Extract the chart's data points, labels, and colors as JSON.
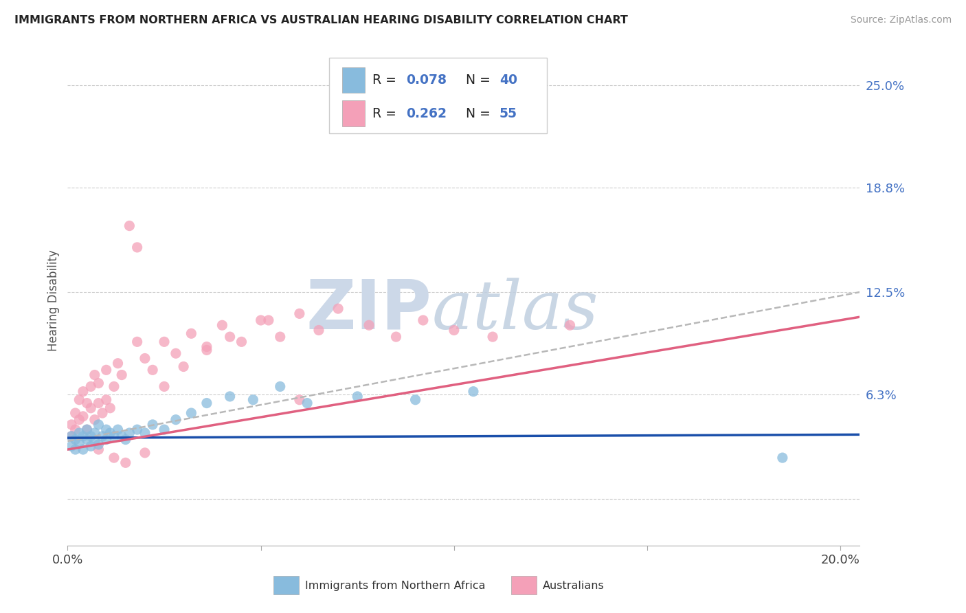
{
  "title": "IMMIGRANTS FROM NORTHERN AFRICA VS AUSTRALIAN HEARING DISABILITY CORRELATION CHART",
  "source": "Source: ZipAtlas.com",
  "ylabel": "Hearing Disability",
  "xlim": [
    0.0,
    0.205
  ],
  "ylim": [
    -0.028,
    0.268
  ],
  "ytick_vals": [
    0.0,
    0.063,
    0.125,
    0.188,
    0.25
  ],
  "ytick_labels": [
    "",
    "6.3%",
    "12.5%",
    "18.8%",
    "25.0%"
  ],
  "xtick_vals": [
    0.0,
    0.05,
    0.1,
    0.15,
    0.2
  ],
  "xtick_labels": [
    "0.0%",
    "",
    "",
    "",
    "20.0%"
  ],
  "legend_R1": "0.078",
  "legend_N1": "40",
  "legend_R2": "0.262",
  "legend_N2": "55",
  "legend_label1": "Immigrants from Northern Africa",
  "legend_label2": "Australians",
  "blue_color": "#88bbdd",
  "pink_color": "#f4a0b8",
  "trend_blue": "#1a4faa",
  "trend_pink": "#e06080",
  "trend_gray": "#b8b8b8",
  "accent_color": "#4472c4",
  "blue_x": [
    0.001,
    0.001,
    0.002,
    0.002,
    0.003,
    0.003,
    0.004,
    0.004,
    0.005,
    0.005,
    0.006,
    0.006,
    0.007,
    0.007,
    0.008,
    0.008,
    0.009,
    0.01,
    0.01,
    0.011,
    0.012,
    0.013,
    0.014,
    0.015,
    0.016,
    0.018,
    0.02,
    0.022,
    0.025,
    0.028,
    0.032,
    0.036,
    0.042,
    0.048,
    0.055,
    0.062,
    0.075,
    0.09,
    0.105,
    0.185
  ],
  "blue_y": [
    0.038,
    0.032,
    0.036,
    0.03,
    0.04,
    0.034,
    0.038,
    0.03,
    0.042,
    0.036,
    0.038,
    0.032,
    0.04,
    0.035,
    0.045,
    0.033,
    0.038,
    0.042,
    0.036,
    0.04,
    0.038,
    0.042,
    0.038,
    0.036,
    0.04,
    0.042,
    0.04,
    0.045,
    0.042,
    0.048,
    0.052,
    0.058,
    0.062,
    0.06,
    0.068,
    0.058,
    0.062,
    0.06,
    0.065,
    0.025
  ],
  "pink_x": [
    0.001,
    0.001,
    0.002,
    0.002,
    0.003,
    0.003,
    0.004,
    0.004,
    0.005,
    0.005,
    0.006,
    0.006,
    0.007,
    0.007,
    0.008,
    0.008,
    0.009,
    0.01,
    0.01,
    0.011,
    0.012,
    0.013,
    0.014,
    0.016,
    0.018,
    0.02,
    0.022,
    0.025,
    0.028,
    0.032,
    0.036,
    0.04,
    0.045,
    0.05,
    0.055,
    0.06,
    0.065,
    0.07,
    0.078,
    0.085,
    0.092,
    0.1,
    0.11,
    0.13,
    0.018,
    0.008,
    0.012,
    0.015,
    0.02,
    0.025,
    0.03,
    0.036,
    0.042,
    0.052,
    0.06
  ],
  "pink_y": [
    0.038,
    0.045,
    0.042,
    0.052,
    0.048,
    0.06,
    0.05,
    0.065,
    0.042,
    0.058,
    0.055,
    0.068,
    0.048,
    0.075,
    0.058,
    0.07,
    0.052,
    0.06,
    0.078,
    0.055,
    0.068,
    0.082,
    0.075,
    0.165,
    0.095,
    0.085,
    0.078,
    0.095,
    0.088,
    0.1,
    0.092,
    0.105,
    0.095,
    0.108,
    0.098,
    0.112,
    0.102,
    0.115,
    0.105,
    0.098,
    0.108,
    0.102,
    0.098,
    0.105,
    0.152,
    0.03,
    0.025,
    0.022,
    0.028,
    0.068,
    0.08,
    0.09,
    0.098,
    0.108,
    0.06
  ]
}
